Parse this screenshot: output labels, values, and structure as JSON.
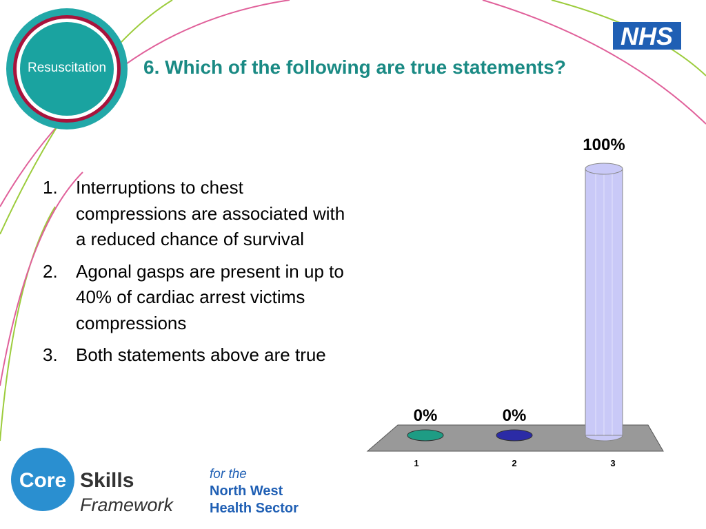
{
  "slide": {
    "title": "6. Which of the following are true statements?",
    "items": [
      {
        "number": "1.",
        "text": "Interruptions to chest compressions are associated with a reduced chance of survival"
      },
      {
        "number": "2.",
        "text": "Agonal gasps are present in up to 40% of cardiac arrest victims compressions"
      },
      {
        "number": "3.",
        "text": "Both statements above are true"
      }
    ],
    "badge": "Resuscitation",
    "nhs": "NHS",
    "core": "Core",
    "skills": "Skills",
    "framework": "Framework",
    "for_the": "for the",
    "north_west": "North West",
    "health_sector": "Health Sector"
  },
  "chart_data": {
    "type": "bar",
    "categories": [
      "1",
      "2",
      "3"
    ],
    "values": [
      0,
      0,
      100
    ],
    "value_labels": [
      "0%",
      "0%",
      "100%"
    ],
    "colors": [
      "#1e9c84",
      "#2b2ba6",
      "#c9c9f7"
    ]
  }
}
